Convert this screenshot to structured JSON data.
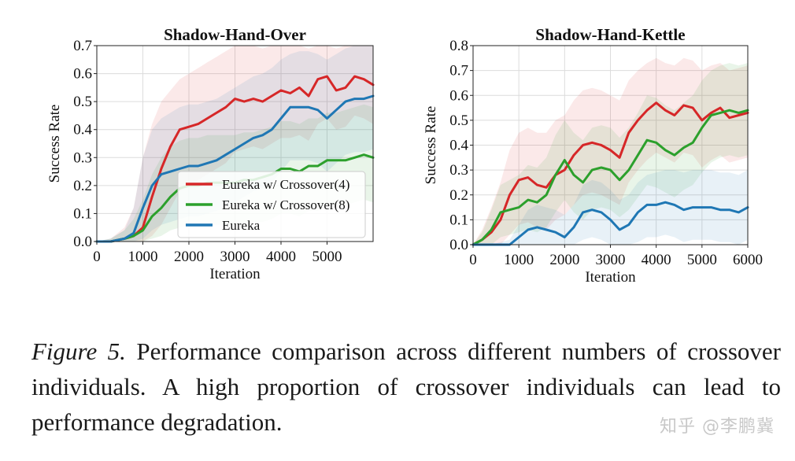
{
  "chart_data": [
    {
      "type": "line",
      "title": "Shadow-Hand-Over",
      "xlabel": "Iteration",
      "ylabel": "Success Rate",
      "xlim": [
        0,
        6000
      ],
      "ylim": [
        0,
        0.7
      ],
      "xticks": [
        0,
        1000,
        2000,
        3000,
        4000,
        5000
      ],
      "yticks": [
        0.0,
        0.1,
        0.2,
        0.3,
        0.4,
        0.5,
        0.6,
        0.7
      ],
      "xtick_labels": [
        "0",
        "1000",
        "2000",
        "3000",
        "4000",
        "5000"
      ],
      "ytick_labels": [
        "0.0",
        "0.1",
        "0.2",
        "0.3",
        "0.4",
        "0.5",
        "0.6",
        "0.7"
      ],
      "grid": true,
      "legend_placement": "lower-right",
      "series": [
        {
          "name": "Eureka w/ Crossover(4)",
          "color": "#d62728",
          "x": [
            0,
            300,
            600,
            800,
            1000,
            1200,
            1400,
            1600,
            1800,
            2000,
            2200,
            2400,
            2600,
            2800,
            3000,
            3200,
            3400,
            3600,
            3800,
            4000,
            4200,
            4400,
            4600,
            4800,
            5000,
            5200,
            5400,
            5600,
            5800,
            6000
          ],
          "y": [
            0.0,
            0.0,
            0.01,
            0.02,
            0.05,
            0.16,
            0.26,
            0.34,
            0.4,
            0.41,
            0.42,
            0.44,
            0.46,
            0.48,
            0.51,
            0.5,
            0.51,
            0.5,
            0.52,
            0.54,
            0.53,
            0.55,
            0.52,
            0.58,
            0.59,
            0.54,
            0.55,
            0.59,
            0.58,
            0.56
          ],
          "band_upper": [
            0.0,
            0.01,
            0.05,
            0.12,
            0.3,
            0.42,
            0.5,
            0.54,
            0.58,
            0.6,
            0.62,
            0.64,
            0.66,
            0.68,
            0.7,
            0.7,
            0.7,
            0.69,
            0.7,
            0.7,
            0.7,
            0.7,
            0.69,
            0.7,
            0.7,
            0.69,
            0.7,
            0.7,
            0.7,
            0.7
          ],
          "band_lower": [
            0.0,
            0.0,
            0.0,
            0.0,
            0.0,
            0.02,
            0.06,
            0.12,
            0.18,
            0.2,
            0.22,
            0.24,
            0.26,
            0.28,
            0.32,
            0.33,
            0.34,
            0.33,
            0.35,
            0.37,
            0.37,
            0.38,
            0.36,
            0.42,
            0.44,
            0.4,
            0.41,
            0.45,
            0.44,
            0.42
          ]
        },
        {
          "name": "Eureka w/ Crossover(8)",
          "color": "#2ca02c",
          "x": [
            0,
            300,
            600,
            800,
            1000,
            1200,
            1400,
            1600,
            1800,
            2000,
            2200,
            2400,
            2600,
            2800,
            3000,
            3200,
            3400,
            3600,
            3800,
            4000,
            4200,
            4400,
            4600,
            4800,
            5000,
            5200,
            5400,
            5600,
            5800,
            6000
          ],
          "y": [
            0.0,
            0.0,
            0.01,
            0.02,
            0.04,
            0.09,
            0.12,
            0.16,
            0.19,
            0.2,
            0.2,
            0.21,
            0.21,
            0.21,
            0.21,
            0.22,
            0.22,
            0.23,
            0.24,
            0.26,
            0.26,
            0.25,
            0.27,
            0.27,
            0.29,
            0.29,
            0.29,
            0.3,
            0.31,
            0.3
          ],
          "band_upper": [
            0.0,
            0.01,
            0.04,
            0.08,
            0.15,
            0.24,
            0.3,
            0.34,
            0.36,
            0.37,
            0.37,
            0.38,
            0.38,
            0.38,
            0.38,
            0.39,
            0.39,
            0.4,
            0.41,
            0.43,
            0.43,
            0.42,
            0.44,
            0.44,
            0.46,
            0.46,
            0.47,
            0.48,
            0.49,
            0.48
          ],
          "band_lower": [
            0.0,
            0.0,
            0.0,
            0.0,
            0.0,
            0.01,
            0.02,
            0.04,
            0.05,
            0.06,
            0.06,
            0.06,
            0.06,
            0.06,
            0.06,
            0.07,
            0.07,
            0.07,
            0.08,
            0.1,
            0.1,
            0.09,
            0.11,
            0.11,
            0.13,
            0.13,
            0.13,
            0.14,
            0.15,
            0.14
          ]
        },
        {
          "name": "Eureka",
          "color": "#1f77b4",
          "x": [
            0,
            300,
            600,
            800,
            1000,
            1200,
            1400,
            1600,
            1800,
            2000,
            2200,
            2400,
            2600,
            2800,
            3000,
            3200,
            3400,
            3600,
            3800,
            4000,
            4200,
            4400,
            4600,
            4800,
            5000,
            5200,
            5400,
            5600,
            5800,
            6000
          ],
          "y": [
            0.0,
            0.0,
            0.01,
            0.03,
            0.12,
            0.2,
            0.24,
            0.25,
            0.26,
            0.27,
            0.27,
            0.28,
            0.29,
            0.31,
            0.33,
            0.35,
            0.37,
            0.38,
            0.4,
            0.44,
            0.48,
            0.48,
            0.48,
            0.47,
            0.44,
            0.47,
            0.5,
            0.51,
            0.51,
            0.52
          ],
          "band_upper": [
            0.0,
            0.01,
            0.04,
            0.12,
            0.3,
            0.4,
            0.44,
            0.46,
            0.48,
            0.49,
            0.49,
            0.5,
            0.51,
            0.53,
            0.55,
            0.57,
            0.59,
            0.6,
            0.62,
            0.65,
            0.67,
            0.68,
            0.68,
            0.67,
            0.65,
            0.67,
            0.69,
            0.7,
            0.7,
            0.7
          ],
          "band_lower": [
            0.0,
            0.0,
            0.0,
            0.0,
            0.01,
            0.04,
            0.06,
            0.07,
            0.08,
            0.09,
            0.09,
            0.1,
            0.11,
            0.12,
            0.14,
            0.16,
            0.18,
            0.19,
            0.21,
            0.25,
            0.29,
            0.29,
            0.29,
            0.28,
            0.25,
            0.28,
            0.31,
            0.32,
            0.32,
            0.33
          ]
        }
      ]
    },
    {
      "type": "line",
      "title": "Shadow-Hand-Kettle",
      "xlabel": "Iteration",
      "ylabel": "Success Rate",
      "xlim": [
        0,
        6000
      ],
      "ylim": [
        0,
        0.8
      ],
      "xticks": [
        0,
        1000,
        2000,
        3000,
        4000,
        5000,
        6000
      ],
      "yticks": [
        0.0,
        0.1,
        0.2,
        0.3,
        0.4,
        0.5,
        0.6,
        0.7,
        0.8
      ],
      "xtick_labels": [
        "0",
        "1000",
        "2000",
        "3000",
        "4000",
        "5000",
        "6000"
      ],
      "ytick_labels": [
        "0.0",
        "0.1",
        "0.2",
        "0.3",
        "0.4",
        "0.5",
        "0.6",
        "0.7",
        "0.8"
      ],
      "grid": true,
      "series": [
        {
          "name": "Eureka w/ Crossover(4)",
          "color": "#d62728",
          "x": [
            0,
            200,
            400,
            600,
            800,
            1000,
            1200,
            1400,
            1600,
            1800,
            2000,
            2200,
            2400,
            2600,
            2800,
            3000,
            3200,
            3400,
            3600,
            3800,
            4000,
            4200,
            4400,
            4600,
            4800,
            5000,
            5200,
            5400,
            5600,
            5800,
            6000
          ],
          "y": [
            0.0,
            0.02,
            0.05,
            0.1,
            0.2,
            0.26,
            0.27,
            0.24,
            0.23,
            0.28,
            0.3,
            0.36,
            0.4,
            0.41,
            0.4,
            0.38,
            0.35,
            0.45,
            0.5,
            0.54,
            0.57,
            0.54,
            0.52,
            0.56,
            0.55,
            0.5,
            0.53,
            0.55,
            0.51,
            0.52,
            0.53
          ],
          "band_upper": [
            0.0,
            0.06,
            0.15,
            0.25,
            0.38,
            0.45,
            0.47,
            0.45,
            0.45,
            0.5,
            0.52,
            0.58,
            0.62,
            0.63,
            0.62,
            0.6,
            0.58,
            0.66,
            0.7,
            0.73,
            0.75,
            0.73,
            0.72,
            0.75,
            0.74,
            0.7,
            0.72,
            0.73,
            0.7,
            0.71,
            0.72
          ],
          "band_lower": [
            0.0,
            0.0,
            0.0,
            0.0,
            0.04,
            0.08,
            0.09,
            0.07,
            0.06,
            0.1,
            0.12,
            0.16,
            0.2,
            0.21,
            0.2,
            0.18,
            0.16,
            0.25,
            0.3,
            0.34,
            0.37,
            0.35,
            0.33,
            0.37,
            0.36,
            0.31,
            0.34,
            0.36,
            0.33,
            0.34,
            0.35
          ]
        },
        {
          "name": "Eureka w/ Crossover(8)",
          "color": "#2ca02c",
          "x": [
            0,
            200,
            400,
            600,
            800,
            1000,
            1200,
            1400,
            1600,
            1800,
            2000,
            2200,
            2400,
            2600,
            2800,
            3000,
            3200,
            3400,
            3600,
            3800,
            4000,
            4200,
            4400,
            4600,
            4800,
            5000,
            5200,
            5400,
            5600,
            5800,
            6000
          ],
          "y": [
            0.0,
            0.02,
            0.06,
            0.13,
            0.14,
            0.15,
            0.18,
            0.17,
            0.2,
            0.28,
            0.34,
            0.28,
            0.25,
            0.3,
            0.31,
            0.3,
            0.26,
            0.3,
            0.36,
            0.42,
            0.41,
            0.38,
            0.36,
            0.39,
            0.41,
            0.47,
            0.52,
            0.53,
            0.54,
            0.53,
            0.54
          ],
          "band_upper": [
            0.0,
            0.05,
            0.14,
            0.24,
            0.26,
            0.28,
            0.32,
            0.31,
            0.35,
            0.44,
            0.5,
            0.45,
            0.42,
            0.47,
            0.48,
            0.47,
            0.43,
            0.47,
            0.53,
            0.6,
            0.59,
            0.56,
            0.54,
            0.57,
            0.6,
            0.66,
            0.7,
            0.72,
            0.73,
            0.72,
            0.73
          ],
          "band_lower": [
            0.0,
            0.0,
            0.0,
            0.03,
            0.04,
            0.05,
            0.06,
            0.05,
            0.07,
            0.13,
            0.18,
            0.13,
            0.1,
            0.14,
            0.15,
            0.14,
            0.11,
            0.14,
            0.19,
            0.24,
            0.23,
            0.21,
            0.19,
            0.22,
            0.24,
            0.29,
            0.33,
            0.35,
            0.36,
            0.35,
            0.36
          ]
        },
        {
          "name": "Eureka",
          "color": "#1f77b4",
          "x": [
            0,
            200,
            400,
            600,
            800,
            1000,
            1200,
            1400,
            1600,
            1800,
            2000,
            2200,
            2400,
            2600,
            2800,
            3000,
            3200,
            3400,
            3600,
            3800,
            4000,
            4200,
            4400,
            4600,
            4800,
            5000,
            5200,
            5400,
            5600,
            5800,
            6000
          ],
          "y": [
            0.0,
            0.0,
            0.0,
            0.0,
            0.0,
            0.03,
            0.06,
            0.07,
            0.06,
            0.05,
            0.03,
            0.07,
            0.13,
            0.14,
            0.13,
            0.1,
            0.06,
            0.08,
            0.13,
            0.16,
            0.16,
            0.17,
            0.16,
            0.14,
            0.15,
            0.15,
            0.15,
            0.14,
            0.14,
            0.13,
            0.15
          ],
          "band_upper": [
            0.0,
            0.0,
            0.0,
            0.01,
            0.02,
            0.08,
            0.14,
            0.16,
            0.15,
            0.14,
            0.12,
            0.16,
            0.24,
            0.26,
            0.25,
            0.22,
            0.18,
            0.2,
            0.25,
            0.28,
            0.29,
            0.3,
            0.3,
            0.29,
            0.3,
            0.3,
            0.3,
            0.29,
            0.29,
            0.28,
            0.3
          ],
          "band_lower": [
            0.0,
            0.0,
            0.0,
            0.0,
            0.0,
            0.0,
            0.0,
            0.0,
            0.0,
            0.0,
            0.0,
            0.0,
            0.02,
            0.03,
            0.02,
            0.0,
            0.0,
            0.0,
            0.01,
            0.03,
            0.03,
            0.04,
            0.03,
            0.01,
            0.02,
            0.02,
            0.02,
            0.01,
            0.01,
            0.0,
            0.02
          ]
        }
      ]
    }
  ],
  "caption": {
    "label": "Figure 5.",
    "text": " Performance comparison across different numbers of crossover individuals. A high proportion of crossover individuals can lead to performance degradation."
  },
  "watermark": "知乎 @李鹏冀"
}
